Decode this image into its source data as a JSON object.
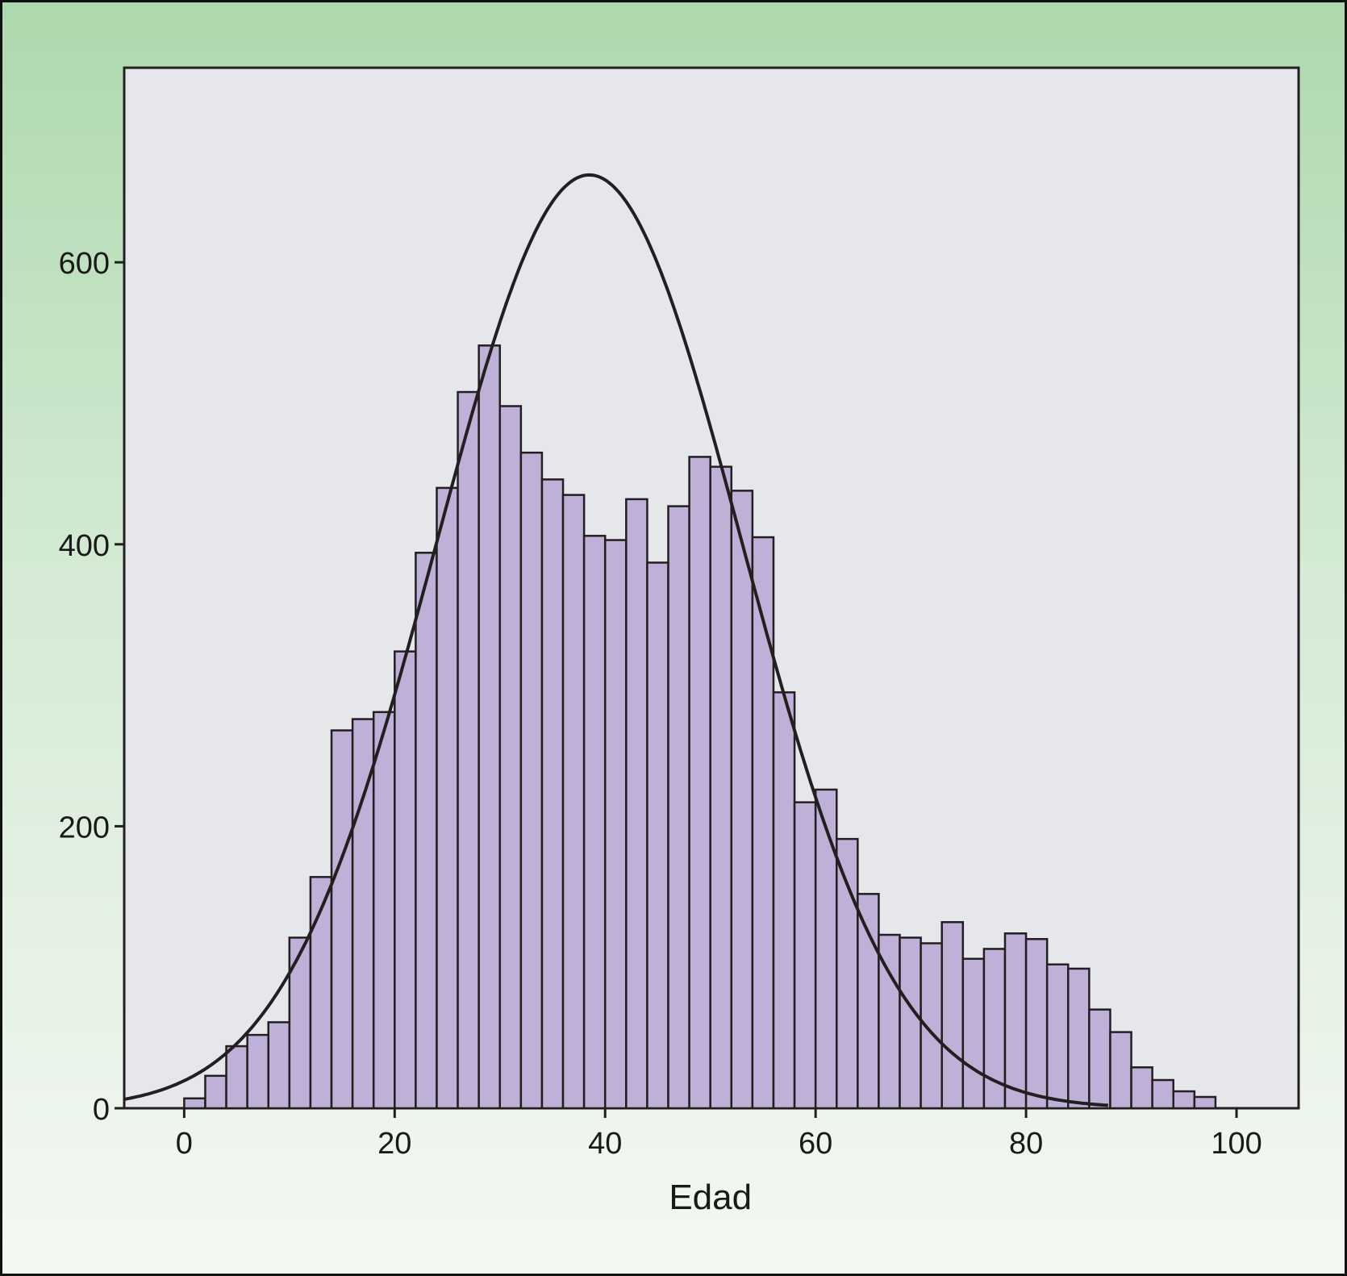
{
  "chart_data": {
    "type": "bar",
    "subtype": "histogram",
    "title": "",
    "xlabel": "Edad",
    "ylabel": "",
    "xlim": [
      -5.7,
      105.9
    ],
    "ylim": [
      0,
      738
    ],
    "bin_width": 2,
    "bin_starts": [
      0,
      2,
      4,
      6,
      8,
      10,
      12,
      14,
      16,
      18,
      20,
      22,
      24,
      26,
      28,
      30,
      32,
      34,
      36,
      38,
      40,
      42,
      44,
      46,
      48,
      50,
      52,
      54,
      56,
      58,
      60,
      62,
      64,
      66,
      68,
      70,
      72,
      74,
      76,
      78,
      80,
      82,
      84,
      86,
      88,
      90,
      92,
      94,
      96
    ],
    "values": [
      7,
      23,
      44,
      52,
      61,
      121,
      164,
      268,
      276,
      281,
      324,
      394,
      440,
      508,
      541,
      498,
      465,
      446,
      435,
      406,
      403,
      432,
      387,
      427,
      462,
      455,
      438,
      405,
      295,
      217,
      226,
      191,
      152,
      123,
      121,
      117,
      132,
      106,
      113,
      124,
      120,
      102,
      99,
      70,
      54,
      29,
      20,
      12,
      8
    ],
    "x_ticks": [
      0,
      20,
      40,
      60,
      80,
      100
    ],
    "x_tick_labels": [
      "0",
      "20",
      "40",
      "60",
      "80",
      "100"
    ],
    "y_ticks": [
      0,
      200,
      400,
      600
    ],
    "y_tick_labels": [
      "0",
      "200",
      "400",
      "600"
    ],
    "normal_fit": {
      "mean": 38.5,
      "sd": 14.5,
      "peak": 662
    },
    "grid": false,
    "colors": {
      "bar": "#bfb0d8",
      "edge": "#231f20",
      "plot_bg": "#e6e7ea",
      "curve": "#231f20"
    }
  }
}
